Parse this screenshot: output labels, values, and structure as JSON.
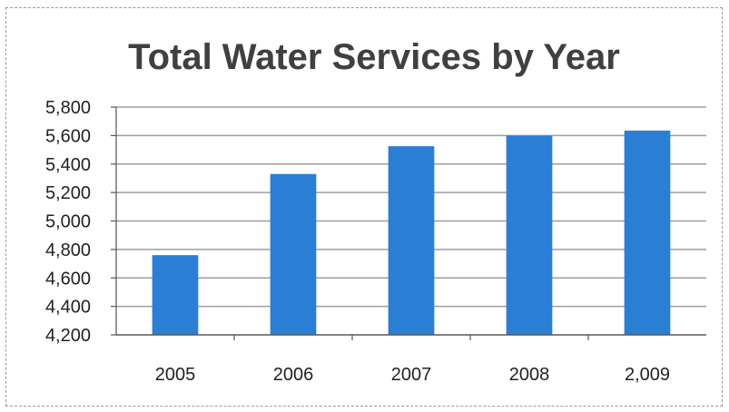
{
  "chart_data": {
    "type": "bar",
    "title": "Total Water Services by Year",
    "categories": [
      "2005",
      "2006",
      "2007",
      "2008",
      "2,009"
    ],
    "values": [
      4760,
      5330,
      5525,
      5600,
      5635
    ],
    "ylim": [
      4200,
      5800
    ],
    "yticks": [
      5800,
      5600,
      5400,
      5200,
      5000,
      4800,
      4600,
      4400,
      4200
    ],
    "ytick_labels": [
      "5,800",
      "5,600",
      "5,400",
      "5,200",
      "5,000",
      "4,800",
      "4,600",
      "4,400",
      "4,200"
    ],
    "grid": true,
    "legend": "none",
    "bar_color": "#2a7fd4",
    "grid_color": "#9e9e9e"
  }
}
